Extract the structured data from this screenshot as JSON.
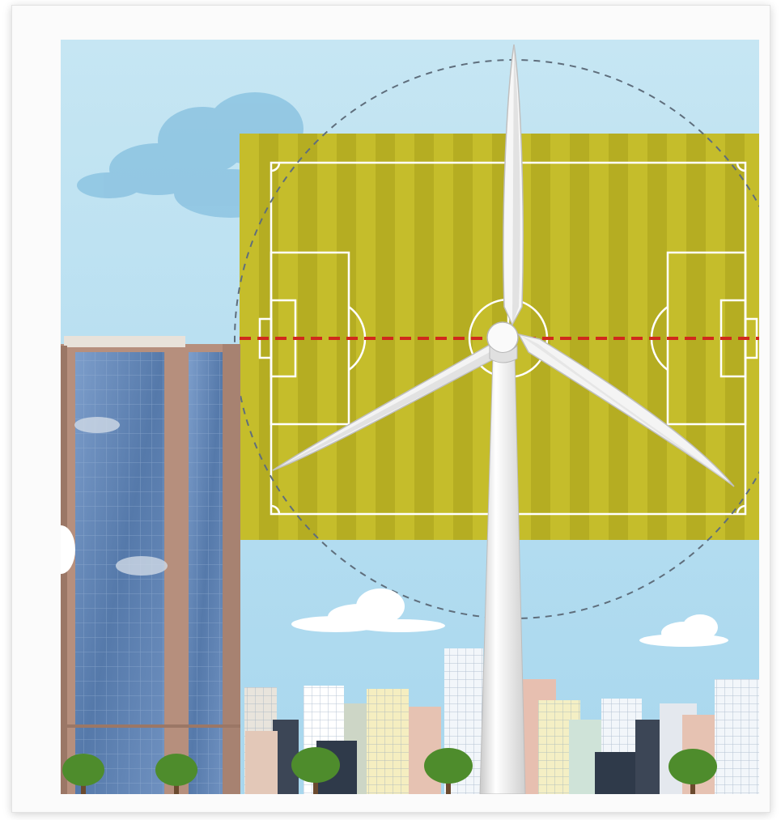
{
  "illustration": {
    "subject": "wind-turbine-vs-football-pitch",
    "icons": [
      "wind-turbine-icon",
      "football-pitch-icon",
      "skyscraper-icon",
      "tree-icon",
      "cloud-icon"
    ]
  },
  "colors": {
    "sky_top": "#c3e5f3",
    "sky_bottom": "#a9d8ef",
    "pitch_light": "#c9c12d",
    "pitch_dark": "#b8b023",
    "pitch_lines": "#ffffff",
    "rotor_diameter_line": "#d02a1c",
    "sweep_circle": "#5f6e7c",
    "turbine": "#f2f2f2",
    "tower_glass": "#5d83b3",
    "tower_frame": "#b18d7b"
  }
}
